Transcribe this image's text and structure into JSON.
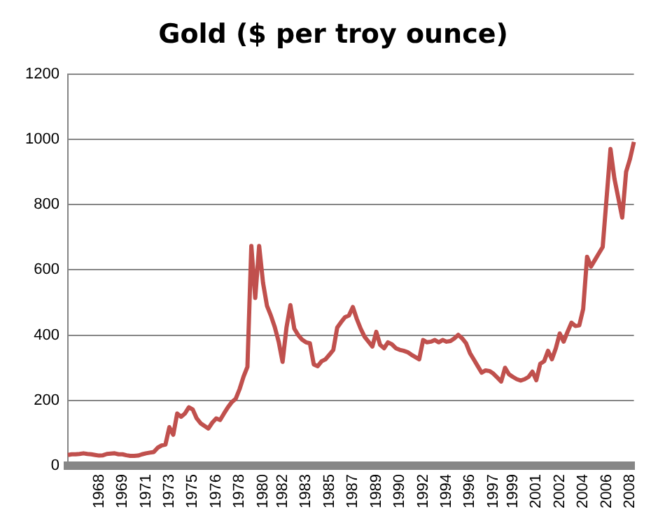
{
  "chart_data": {
    "type": "line",
    "title": "Gold ($ per troy ounce)",
    "categories": [
      null,
      null,
      null,
      null,
      null,
      null,
      null,
      null,
      "1968",
      null,
      null,
      null,
      null,
      null,
      "1969",
      null,
      null,
      null,
      null,
      null,
      "1971",
      null,
      null,
      null,
      null,
      null,
      "1973",
      null,
      null,
      null,
      null,
      null,
      "1975",
      null,
      null,
      null,
      null,
      null,
      "1976",
      null,
      null,
      null,
      null,
      null,
      "1978",
      null,
      null,
      null,
      null,
      null,
      "1980",
      null,
      null,
      null,
      null,
      "1982",
      null,
      null,
      null,
      null,
      null,
      "1983",
      null,
      null,
      null,
      null,
      null,
      "1985",
      null,
      null,
      null,
      null,
      null,
      "1987",
      null,
      null,
      null,
      null,
      null,
      "1989",
      null,
      null,
      null,
      null,
      null,
      "1990",
      null,
      null,
      null,
      null,
      null,
      "1992",
      null,
      null,
      null,
      null,
      null,
      "1994",
      null,
      null,
      null,
      null,
      null,
      "1996",
      null,
      null,
      null,
      null,
      null,
      "1997",
      null,
      null,
      null,
      null,
      "1999",
      null,
      null,
      null,
      null,
      null,
      "2001",
      null,
      null,
      null,
      null,
      null,
      "2002",
      null,
      null,
      null,
      null,
      null,
      "2004",
      null,
      null,
      null,
      null,
      null,
      "2006",
      null,
      null,
      null,
      null,
      null,
      "2008",
      null
    ],
    "series": [
      {
        "color": "#c0504d",
        "values": [
          33,
          35,
          35,
          36,
          38,
          36,
          35,
          33,
          31,
          32,
          36,
          37,
          38,
          35,
          35,
          32,
          30,
          30,
          31,
          35,
          38,
          40,
          42,
          55,
          62,
          65,
          118,
          95,
          160,
          150,
          160,
          179,
          172,
          145,
          130,
          122,
          114,
          132,
          145,
          140,
          160,
          179,
          195,
          205,
          235,
          273,
          303,
          673,
          514,
          673,
          560,
          490,
          460,
          425,
          380,
          318,
          423,
          492,
          420,
          400,
          386,
          378,
          375,
          310,
          305,
          320,
          326,
          340,
          355,
          423,
          440,
          455,
          460,
          486,
          450,
          420,
          395,
          380,
          365,
          410,
          370,
          360,
          378,
          372,
          360,
          355,
          352,
          348,
          340,
          333,
          326,
          385,
          378,
          380,
          385,
          378,
          385,
          380,
          382,
          390,
          401,
          390,
          375,
          345,
          325,
          305,
          285,
          292,
          290,
          282,
          270,
          258,
          300,
          280,
          272,
          265,
          261,
          265,
          272,
          288,
          262,
          312,
          320,
          352,
          326,
          360,
          405,
          380,
          410,
          438,
          428,
          430,
          480,
          640,
          610,
          630,
          650,
          670,
          820,
          970,
          880,
          820,
          760,
          900,
          940,
          992
        ]
      }
    ],
    "ylim": [
      0,
      1200
    ],
    "yticks": [
      0,
      200,
      400,
      600,
      800,
      1000,
      1200
    ],
    "grid": "y",
    "legend": false,
    "marker": "none",
    "line_style": "solid"
  }
}
